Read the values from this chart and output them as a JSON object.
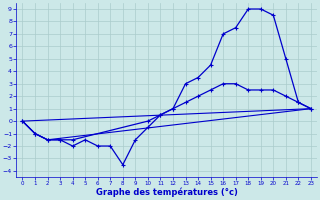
{
  "xlabel": "Graphe des températures (°c)",
  "bg_color": "#cce8e8",
  "grid_color": "#aacccc",
  "line_color": "#0000cc",
  "xlim": [
    -0.5,
    23.5
  ],
  "ylim": [
    -4.5,
    9.5
  ],
  "xticks": [
    0,
    1,
    2,
    3,
    4,
    5,
    6,
    7,
    8,
    9,
    10,
    11,
    12,
    13,
    14,
    15,
    16,
    17,
    18,
    19,
    20,
    21,
    22,
    23
  ],
  "yticks": [
    -4,
    -3,
    -2,
    -1,
    0,
    1,
    2,
    3,
    4,
    5,
    6,
    7,
    8,
    9
  ],
  "line1_x": [
    0,
    1,
    2,
    3,
    4,
    5,
    6,
    7,
    8,
    9,
    10,
    11,
    12,
    13,
    14,
    15,
    16,
    17,
    18,
    19,
    20,
    21,
    22,
    23
  ],
  "line1_y": [
    0,
    -1,
    -1.5,
    -1.5,
    -2,
    -1.5,
    -2,
    -2,
    -3.5,
    -1.5,
    -0.5,
    0.5,
    1,
    3,
    3.5,
    4.5,
    7,
    7.5,
    9,
    9,
    8.5,
    5,
    1.5,
    1
  ],
  "line2_x": [
    0,
    1,
    2,
    3,
    4,
    10,
    11,
    12,
    13,
    14,
    15,
    16,
    17,
    18,
    19,
    20,
    21,
    22,
    23
  ],
  "line2_y": [
    0,
    -1,
    -1.5,
    -1.5,
    -1.5,
    0,
    0.5,
    1,
    1.5,
    2,
    2.5,
    3,
    3,
    2.5,
    2.5,
    2.5,
    2,
    1.5,
    1
  ],
  "line3_x": [
    0,
    1,
    2,
    23
  ],
  "line3_y": [
    0,
    -1,
    -1.5,
    1
  ],
  "line4_x": [
    0,
    23
  ],
  "line4_y": [
    0,
    1
  ]
}
